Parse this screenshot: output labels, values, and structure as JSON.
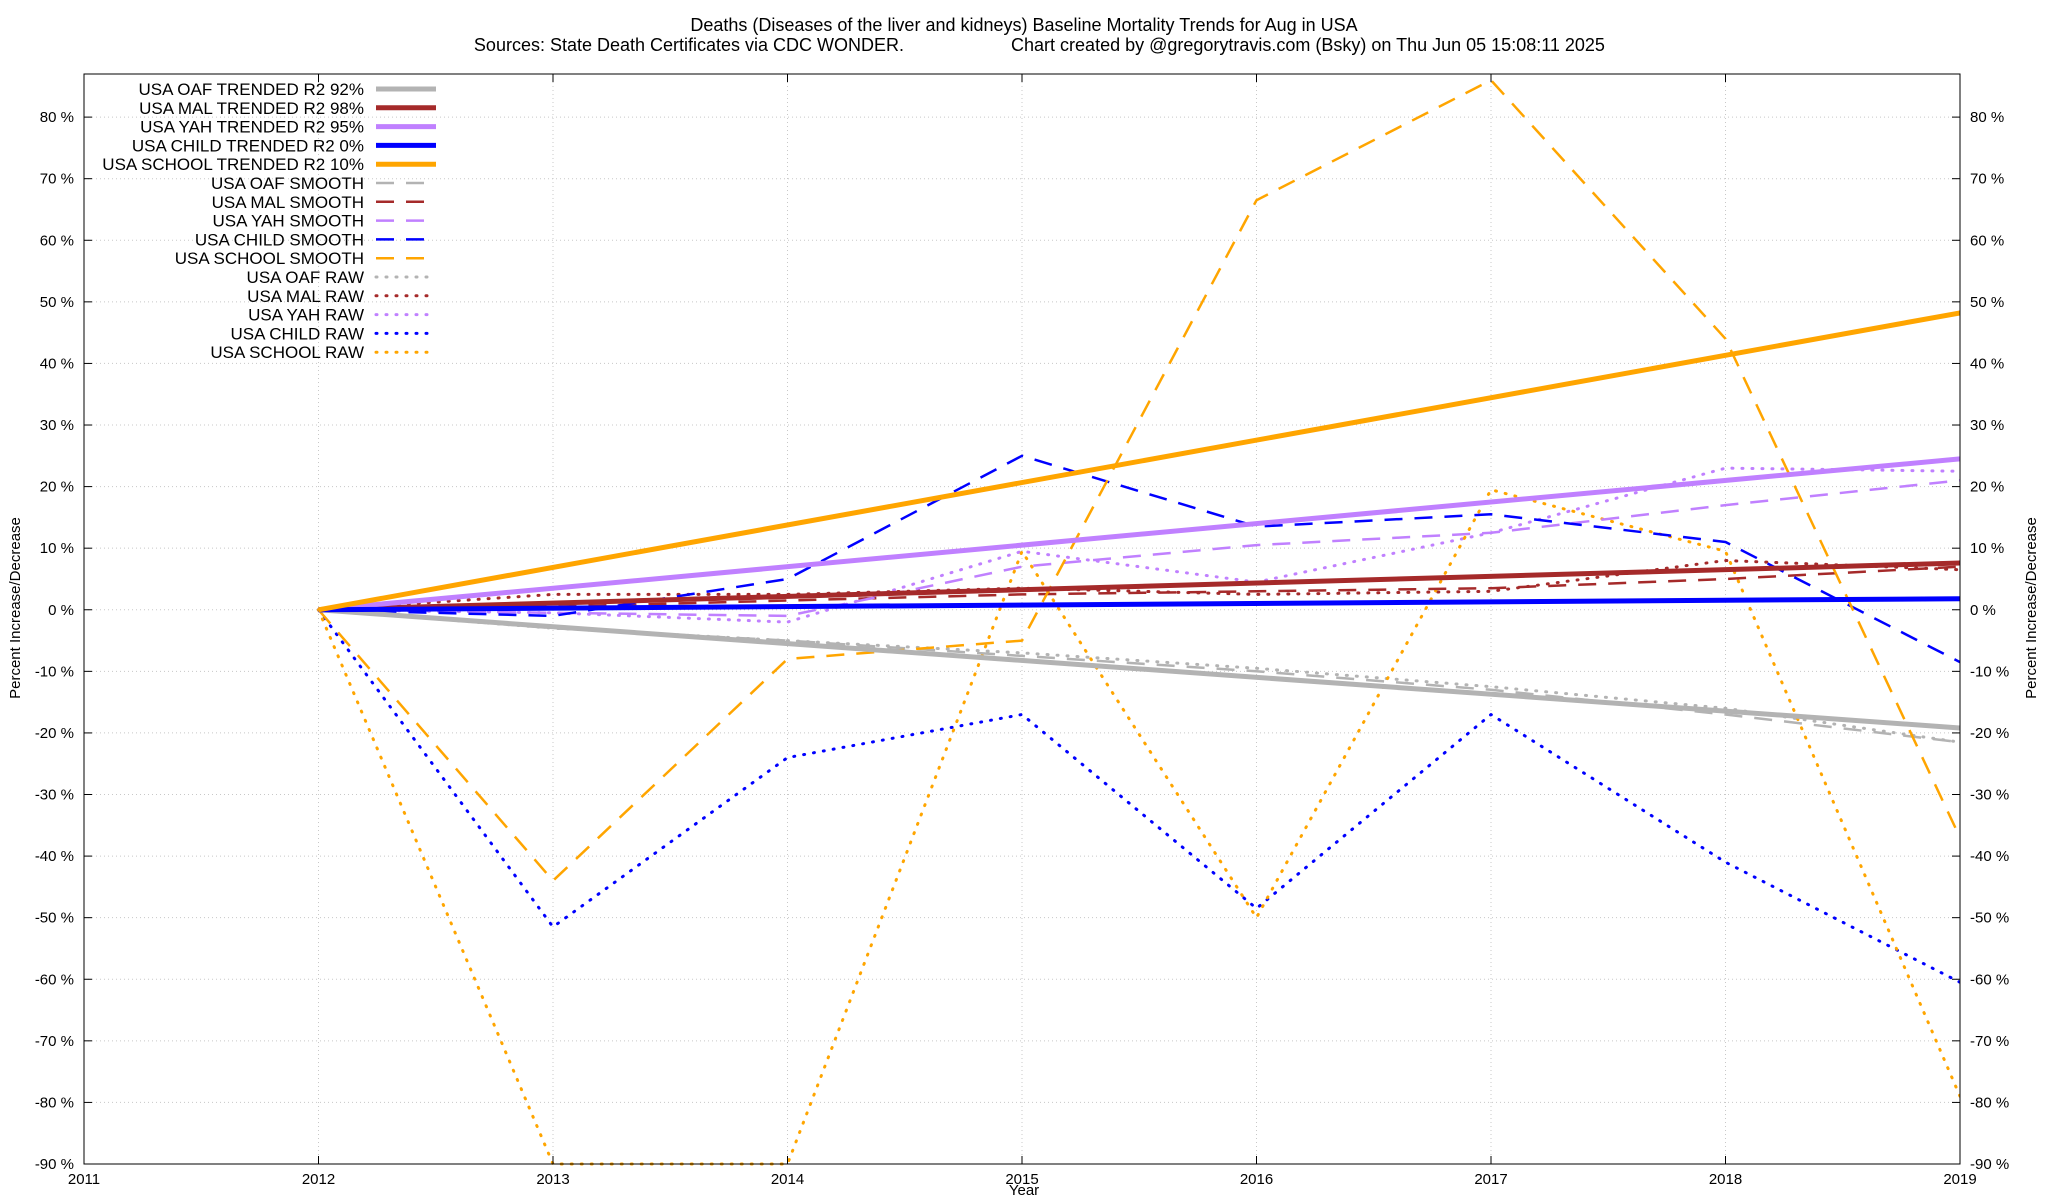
{
  "chart_data": {
    "type": "line",
    "title": "Deaths (Diseases of the liver and kidneys)  Baseline Mortality Trends for Aug in USA",
    "subtitle_left": "Sources: State Death Certificates via CDC WONDER.",
    "subtitle_right": "Chart created by @gregorytravis.com (Bsky) on Thu Jun 05 15:08:11 2025",
    "xlabel": "Year",
    "ylabel": "Percent Increase/Decrease",
    "ylabel_right": "Percent Increase/Decrease",
    "xlim": [
      2011,
      2019
    ],
    "ylim": [
      -90,
      87
    ],
    "x_ticks": [
      "2011",
      "2012",
      "2013",
      "2014",
      "2015",
      "2016",
      "2017",
      "2018",
      "2019"
    ],
    "y_ticks": [
      "80 %",
      "70 %",
      "60 %",
      "50 %",
      "40 %",
      "30 %",
      "20 %",
      "10 %",
      "0 %",
      "-10 %",
      "-20 %",
      "-30 %",
      "-40 %",
      "-50 %",
      "-60 %",
      "-70 %",
      "-80 %",
      "-90 %"
    ],
    "y_tick_values": [
      80,
      70,
      60,
      50,
      40,
      30,
      20,
      10,
      0,
      -10,
      -20,
      -30,
      -40,
      -50,
      -60,
      -70,
      -80,
      -90
    ],
    "grid": true,
    "legend_position": "top-left",
    "series": [
      {
        "name": "USA OAF TRENDED R2  92%",
        "color": "#b3b3b3",
        "style": "solid",
        "x": [
          2012,
          2019
        ],
        "values": [
          0,
          -19.2
        ]
      },
      {
        "name": "USA MAL TRENDED R2  98%",
        "color": "#a52a2a",
        "style": "solid",
        "x": [
          2012,
          2019
        ],
        "values": [
          0,
          7.6
        ]
      },
      {
        "name": "USA YAH TRENDED R2  95%",
        "color": "#c080ff",
        "style": "solid",
        "x": [
          2012,
          2019
        ],
        "values": [
          0,
          24.5
        ]
      },
      {
        "name": "USA CHILD TRENDED R2   0%",
        "color": "#0000ff",
        "style": "solid",
        "x": [
          2012,
          2019
        ],
        "values": [
          0,
          1.8
        ]
      },
      {
        "name": "USA SCHOOL TRENDED R2  10%",
        "color": "#ffa500",
        "style": "solid",
        "x": [
          2012,
          2019
        ],
        "values": [
          0,
          48.2
        ]
      },
      {
        "name": "USA OAF SMOOTH",
        "color": "#b3b3b3",
        "style": "dash",
        "x": [
          2012,
          2013,
          2014,
          2015,
          2016,
          2017,
          2018,
          2019
        ],
        "values": [
          0,
          -3,
          -5,
          -7.5,
          -10,
          -13,
          -17,
          -21.5
        ]
      },
      {
        "name": "USA MAL SMOOTH",
        "color": "#a52a2a",
        "style": "dash",
        "x": [
          2012,
          2013,
          2014,
          2015,
          2016,
          2017,
          2018,
          2019
        ],
        "values": [
          0,
          0.5,
          1.5,
          2.5,
          3,
          3.5,
          5,
          7
        ]
      },
      {
        "name": "USA YAH SMOOTH",
        "color": "#c080ff",
        "style": "dash",
        "x": [
          2012,
          2013,
          2014,
          2015,
          2016,
          2017,
          2018,
          2019
        ],
        "values": [
          0,
          -0.5,
          -1,
          7,
          10.5,
          12.5,
          17,
          21
        ]
      },
      {
        "name": "USA CHILD SMOOTH",
        "color": "#0000ff",
        "style": "dash",
        "x": [
          2012,
          2013,
          2014,
          2015,
          2016,
          2017,
          2018,
          2019
        ],
        "values": [
          0,
          -1,
          5,
          25,
          13.5,
          15.5,
          11,
          -8.5
        ]
      },
      {
        "name": "USA SCHOOL SMOOTH",
        "color": "#ffa500",
        "style": "dash",
        "x": [
          2012,
          2013,
          2014,
          2015,
          2016,
          2017,
          2018,
          2019
        ],
        "values": [
          0,
          -44,
          -8,
          -5,
          66.5,
          86,
          44,
          -37
        ]
      },
      {
        "name": "USA OAF RAW",
        "color": "#b3b3b3",
        "style": "dot",
        "x": [
          2012,
          2013,
          2014,
          2015,
          2016,
          2017,
          2018,
          2019
        ],
        "values": [
          0,
          -3,
          -5,
          -7,
          -9.5,
          -12.5,
          -16,
          -21.5
        ]
      },
      {
        "name": "USA MAL RAW",
        "color": "#a52a2a",
        "style": "dot",
        "x": [
          2012,
          2013,
          2014,
          2015,
          2016,
          2017,
          2018,
          2019
        ],
        "values": [
          0,
          2.5,
          2.5,
          3.5,
          2.5,
          3,
          8,
          6.5
        ]
      },
      {
        "name": "USA YAH RAW",
        "color": "#c080ff",
        "style": "dot",
        "x": [
          2012,
          2013,
          2014,
          2015,
          2016,
          2017,
          2018,
          2019
        ],
        "values": [
          0,
          -0.5,
          -2,
          9.5,
          4.5,
          12.5,
          23,
          22.5
        ]
      },
      {
        "name": "USA CHILD RAW",
        "color": "#0000ff",
        "style": "dot",
        "x": [
          2012,
          2013,
          2014,
          2015,
          2016,
          2017,
          2018,
          2019
        ],
        "values": [
          0,
          -51.5,
          -24,
          -17,
          -48.5,
          -17,
          -41,
          -60.5
        ]
      },
      {
        "name": "USA SCHOOL RAW",
        "color": "#ffa500",
        "style": "dot",
        "x": [
          2012,
          2013,
          2014,
          2015,
          2016,
          2017,
          2018,
          2019
        ],
        "values": [
          0,
          -90,
          -90,
          9.5,
          -50,
          19.5,
          9.5,
          -79
        ]
      }
    ]
  }
}
